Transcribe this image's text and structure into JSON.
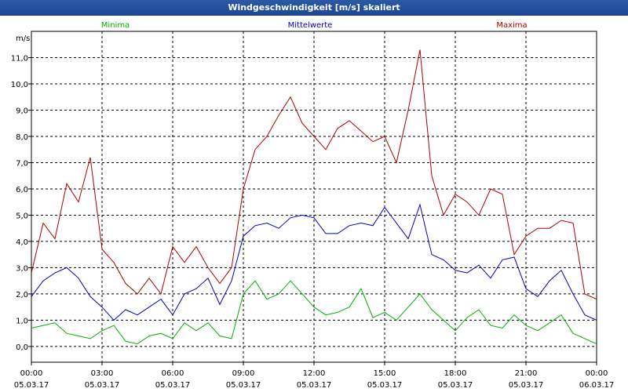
{
  "chart_data": {
    "type": "line",
    "title": "Windgeschwindigkeit [m/s] skaliert",
    "ylabel": "m/s",
    "ylim": [
      -0.6,
      12.0
    ],
    "xlim": [
      0,
      24
    ],
    "yticks": [
      0,
      1,
      2,
      3,
      4,
      5,
      6,
      7,
      8,
      9,
      10,
      11
    ],
    "ytick_labels": [
      "0,0",
      "1,0",
      "2,0",
      "3,0",
      "4,0",
      "5,0",
      "6,0",
      "7,0",
      "8,0",
      "9,0",
      "10,0",
      "11,0"
    ],
    "xticks": [
      {
        "time": "00:00",
        "date": "05.03.17"
      },
      {
        "time": "03:00",
        "date": "05.03.17"
      },
      {
        "time": "06:00",
        "date": "05.03.17"
      },
      {
        "time": "09:00",
        "date": "05.03.17"
      },
      {
        "time": "12:00",
        "date": "05.03.17"
      },
      {
        "time": "15:00",
        "date": "05.03.17"
      },
      {
        "time": "18:00",
        "date": "05.03.17"
      },
      {
        "time": "21:00",
        "date": "05.03.17"
      },
      {
        "time": "00:00",
        "date": "06.03.17"
      }
    ],
    "legend_position": "top",
    "grid": true,
    "series": [
      {
        "name": "Minima",
        "color": "#00b000",
        "x": [
          0,
          0.5,
          1,
          1.5,
          2,
          2.5,
          3,
          3.5,
          4,
          4.5,
          5,
          5.5,
          6,
          6.5,
          7,
          7.5,
          8,
          8.5,
          9,
          9.5,
          10,
          10.5,
          11,
          11.5,
          12,
          12.5,
          13,
          13.5,
          14,
          14.5,
          15,
          15.5,
          16,
          16.5,
          17,
          17.5,
          18,
          18.5,
          19,
          19.5,
          20,
          20.5,
          21,
          21.5,
          22,
          22.5,
          23,
          23.5,
          24
        ],
        "values": [
          0.7,
          0.8,
          0.9,
          0.5,
          0.4,
          0.3,
          0.6,
          0.8,
          0.2,
          0.1,
          0.4,
          0.5,
          0.3,
          0.9,
          0.6,
          0.9,
          0.4,
          0.3,
          2.0,
          2.5,
          1.8,
          2.0,
          2.5,
          2.0,
          1.5,
          1.2,
          1.3,
          1.5,
          2.2,
          1.1,
          1.3,
          1.0,
          1.5,
          2.0,
          1.4,
          1.0,
          0.6,
          1.1,
          1.4,
          0.8,
          0.7,
          1.2,
          0.8,
          0.6,
          0.9,
          1.2,
          0.5,
          0.3,
          0.1
        ]
      },
      {
        "name": "Mittelwerte",
        "color": "#0000c0",
        "x": [
          0,
          0.5,
          1,
          1.5,
          2,
          2.5,
          3,
          3.5,
          4,
          4.5,
          5,
          5.5,
          6,
          6.5,
          7,
          7.5,
          8,
          8.5,
          9,
          9.5,
          10,
          10.5,
          11,
          11.5,
          12,
          12.5,
          13,
          13.5,
          14,
          14.5,
          15,
          15.5,
          16,
          16.5,
          17,
          17.5,
          18,
          18.5,
          19,
          19.5,
          20,
          20.5,
          21,
          21.5,
          22,
          22.5,
          23,
          23.5,
          24
        ],
        "values": [
          1.9,
          2.5,
          2.8,
          3.0,
          2.6,
          1.9,
          1.5,
          1.0,
          1.4,
          1.2,
          1.5,
          1.8,
          1.2,
          2.0,
          2.2,
          2.6,
          1.6,
          2.5,
          4.2,
          4.6,
          4.7,
          4.5,
          4.9,
          5.0,
          4.9,
          4.3,
          4.3,
          4.6,
          4.7,
          4.6,
          5.3,
          4.7,
          4.1,
          5.4,
          3.5,
          3.3,
          2.9,
          2.8,
          3.1,
          2.6,
          3.3,
          3.4,
          2.2,
          1.9,
          2.5,
          2.9,
          2.0,
          1.2,
          1.0
        ]
      },
      {
        "name": "Maxima",
        "color": "#b00000",
        "x": [
          0,
          0.5,
          1,
          1.5,
          2,
          2.5,
          3,
          3.5,
          4,
          4.5,
          5,
          5.5,
          6,
          6.5,
          7,
          7.5,
          8,
          8.5,
          9,
          9.5,
          10,
          10.5,
          11,
          11.5,
          12,
          12.5,
          13,
          13.5,
          14,
          14.5,
          15,
          15.5,
          16,
          16.5,
          17,
          17.5,
          18,
          18.5,
          19,
          19.5,
          20,
          20.5,
          21,
          21.5,
          22,
          22.5,
          23,
          23.5,
          24
        ],
        "values": [
          2.8,
          4.7,
          4.1,
          6.2,
          5.5,
          7.2,
          3.7,
          3.2,
          2.4,
          2.0,
          2.6,
          2.0,
          3.8,
          3.2,
          3.8,
          3.0,
          2.4,
          3.0,
          6.0,
          7.5,
          8.0,
          8.8,
          9.5,
          8.5,
          8.0,
          7.5,
          8.3,
          8.6,
          8.2,
          7.8,
          8.0,
          7.0,
          9.0,
          11.3,
          6.5,
          5.0,
          5.8,
          5.5,
          5.0,
          6.0,
          5.8,
          3.5,
          4.2,
          4.5,
          4.5,
          4.8,
          4.7,
          2.0,
          1.8
        ]
      }
    ]
  }
}
